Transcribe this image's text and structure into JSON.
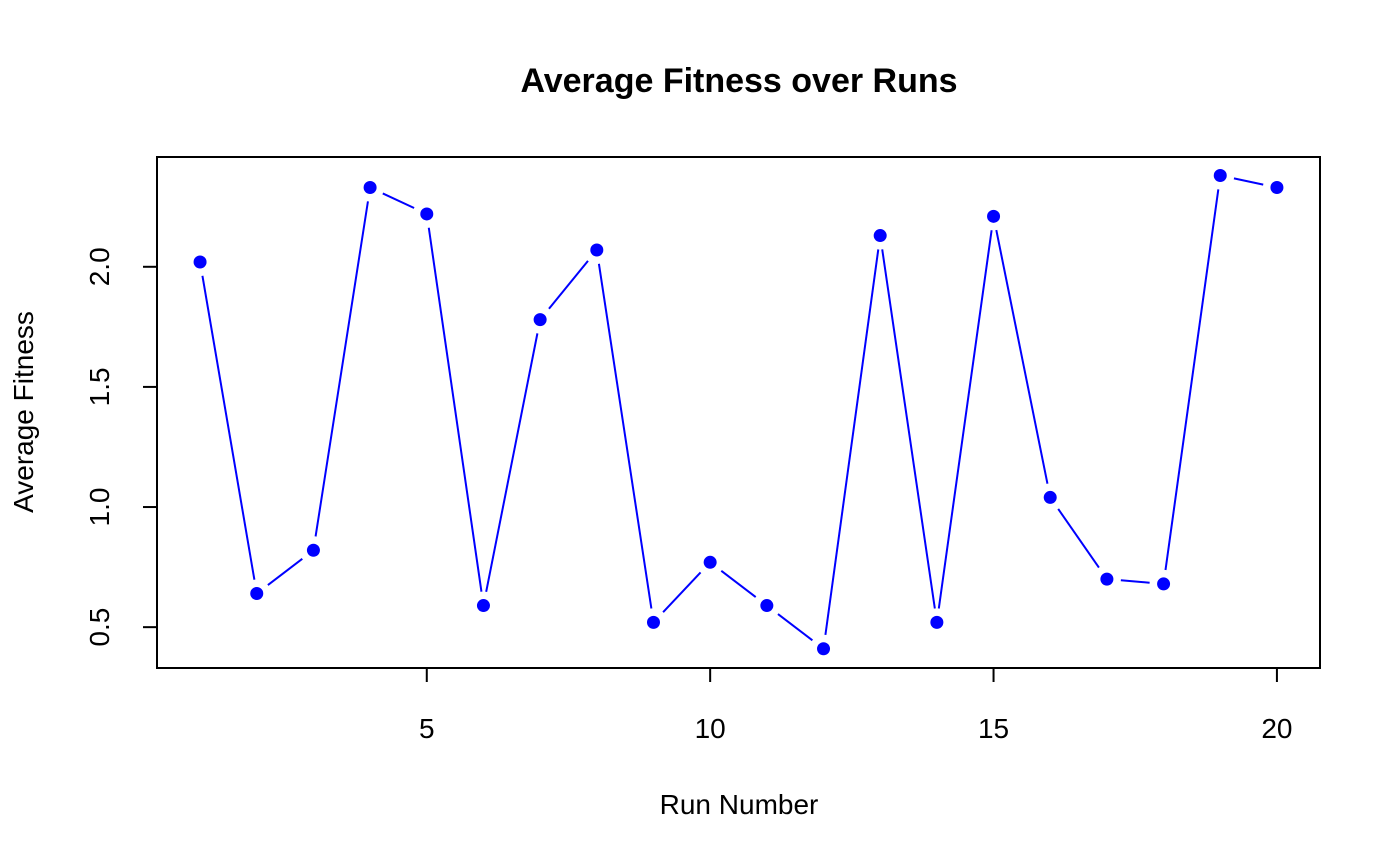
{
  "chart_data": {
    "type": "line",
    "title": "Average Fitness over Runs",
    "xlabel": "Run Number",
    "ylabel": "Average Fitness",
    "x": [
      1,
      2,
      3,
      4,
      5,
      6,
      7,
      8,
      9,
      10,
      11,
      12,
      13,
      14,
      15,
      16,
      17,
      18,
      19,
      20
    ],
    "series": [
      {
        "values": [
          2.02,
          0.64,
          0.82,
          2.33,
          2.22,
          0.59,
          1.78,
          2.07,
          0.52,
          0.77,
          0.59,
          0.41,
          2.13,
          0.52,
          2.21,
          1.04,
          0.7,
          0.68,
          2.38,
          2.33
        ],
        "color": "#0000ff"
      }
    ],
    "xticks": [
      5,
      10,
      15,
      20
    ],
    "xtick_labels": [
      "5",
      "10",
      "15",
      "20"
    ],
    "yticks": [
      0.5,
      1.0,
      1.5,
      2.0
    ],
    "ytick_labels": [
      "0.5",
      "1.0",
      "1.5",
      "2.0"
    ],
    "xlim": [
      0.24,
      20.76
    ],
    "ylim": [
      0.33,
      2.457
    ],
    "grid": false,
    "markers": "filled-circle"
  }
}
